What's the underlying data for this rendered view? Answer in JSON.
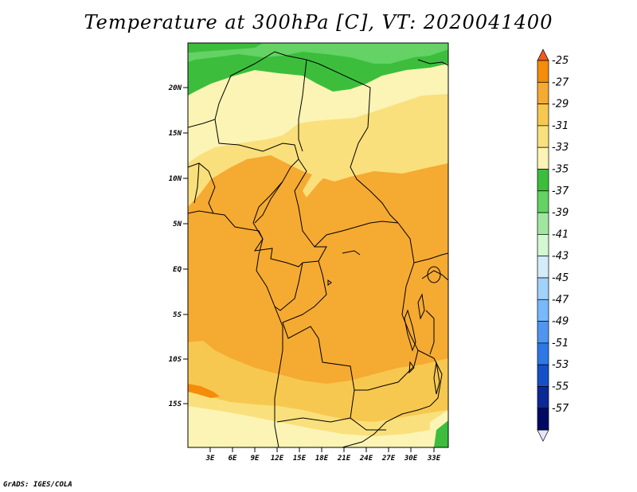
{
  "title": "Temperature at 300hPa [C], VT: 2020041400",
  "footer": "GrADS: IGES/COLA",
  "map": {
    "lat_labels": [
      "20N",
      "15N",
      "10N",
      "5N",
      "EQ",
      "5S",
      "10S",
      "15S"
    ],
    "lon_labels": [
      "3E",
      "6E",
      "9E",
      "12E",
      "15E",
      "18E",
      "21E",
      "24E",
      "27E",
      "30E",
      "33E"
    ]
  },
  "colorbar": {
    "labels": [
      "-25",
      "-27",
      "-29",
      "-31",
      "-33",
      "-35",
      "-37",
      "-39",
      "-41",
      "-43",
      "-45",
      "-47",
      "-49",
      "-51",
      "-53",
      "-55",
      "-57"
    ],
    "colors": [
      "#f05a1e",
      "#f58c0a",
      "#f5aa32",
      "#f7c850",
      "#f9e07c",
      "#fcf4b4",
      "#3cbe3c",
      "#64d264",
      "#a0e6a0",
      "#d2f8d2",
      "#d2ecfa",
      "#a0d2fa",
      "#78b9fa",
      "#5096f0",
      "#2d78e6",
      "#1450c8",
      "#0a2896",
      "#000a64",
      "#e6e6fa"
    ],
    "ends": {
      "top": "#f05a1e",
      "bottom": "#e6e6fa"
    }
  },
  "field_colors": {
    "c_m37": "#3cbe3c",
    "c_m39": "#64d264",
    "c_m35": "#fcf4b4",
    "c_m33": "#f9e07c",
    "c_m31": "#f7c850",
    "c_m29": "#f5aa32",
    "c_m27": "#f58c0a"
  }
}
